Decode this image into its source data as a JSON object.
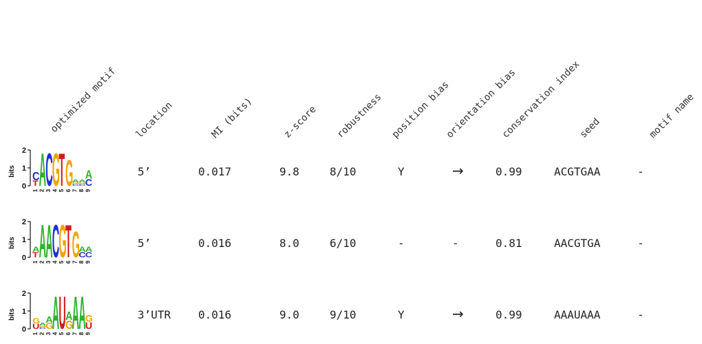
{
  "headers": {
    "optimized_motif": "optimized motif",
    "location": "location",
    "mi_bits": "MI (bits)",
    "z_score": "z-score",
    "robustness": "robustness",
    "position_bias": "position bias",
    "orientation_bias": "orientation bias",
    "conservation_index": "conservation index",
    "seed": "seed",
    "motif_name": "motif name"
  },
  "logo_axis": {
    "ylabel": "bits",
    "ticks": [
      "2",
      "1",
      "0"
    ],
    "positions": [
      "1",
      "2",
      "3",
      "4",
      "5",
      "6",
      "7",
      "8",
      "9"
    ]
  },
  "nucleotide_colors": {
    "A": "#2db32d",
    "C": "#1f2fd6",
    "G": "#f2a400",
    "T": "#d01c1c",
    "U": "#d01c1c"
  },
  "rows": [
    {
      "location": "5’",
      "mi": "0.017",
      "z_score": "9.8",
      "robustness": "8/10",
      "position_bias": "Y",
      "orientation_bias": "→",
      "conservation": "0.99",
      "seed": "ACGTGAA",
      "motif_name": "-",
      "logo": [
        [
          [
            "T",
            0.3
          ],
          [
            "C",
            0.5
          ]
        ],
        [
          [
            "A",
            1.9
          ]
        ],
        [
          [
            "C",
            1.9
          ]
        ],
        [
          [
            "G",
            1.9
          ]
        ],
        [
          [
            "T",
            1.9
          ]
        ],
        [
          [
            "G",
            1.5
          ]
        ],
        [
          [
            "C",
            0.1
          ],
          [
            "G",
            0.1
          ],
          [
            "A",
            0.15
          ]
        ],
        [
          [
            "C",
            0.1
          ],
          [
            "G",
            0.1
          ],
          [
            "A",
            0.15
          ]
        ],
        [
          [
            "C",
            0.4
          ],
          [
            "A",
            0.5
          ]
        ]
      ]
    },
    {
      "location": "5’",
      "mi": "0.016",
      "z_score": "8.0",
      "robustness": "6/10",
      "position_bias": "-",
      "orientation_bias": "-",
      "conservation": "0.81",
      "seed": "AACGTGA",
      "motif_name": "-",
      "logo": [
        [
          [
            "T",
            0.3
          ],
          [
            "A",
            0.3
          ]
        ],
        [
          [
            "A",
            1.9
          ]
        ],
        [
          [
            "A",
            1.9
          ]
        ],
        [
          [
            "C",
            1.9
          ]
        ],
        [
          [
            "G",
            1.9
          ]
        ],
        [
          [
            "T",
            1.9
          ]
        ],
        [
          [
            "G",
            1.5
          ]
        ],
        [
          [
            "C",
            0.3
          ],
          [
            "A",
            0.3
          ]
        ],
        [
          [
            "C",
            0.3
          ],
          [
            "A",
            0.3
          ]
        ]
      ]
    },
    {
      "location": "3’UTR",
      "mi": "0.016",
      "z_score": "9.0",
      "robustness": "9/10",
      "position_bias": "Y",
      "orientation_bias": "→",
      "conservation": "0.99",
      "seed": "AAAUAAA",
      "motif_name": "-",
      "logo": [
        [
          [
            "U",
            0.3
          ],
          [
            "G",
            0.3
          ]
        ],
        [
          [
            "C",
            0.1
          ],
          [
            "G",
            0.1
          ],
          [
            "A",
            0.15
          ]
        ],
        [
          [
            "G",
            0.35
          ],
          [
            "A",
            0.35
          ]
        ],
        [
          [
            "A",
            1.9
          ]
        ],
        [
          [
            "U",
            1.9
          ]
        ],
        [
          [
            "G",
            0.5
          ],
          [
            "A",
            0.5
          ]
        ],
        [
          [
            "A",
            1.9
          ]
        ],
        [
          [
            "A",
            1.9
          ]
        ],
        [
          [
            "U",
            0.4
          ],
          [
            "G",
            0.4
          ]
        ]
      ]
    }
  ]
}
